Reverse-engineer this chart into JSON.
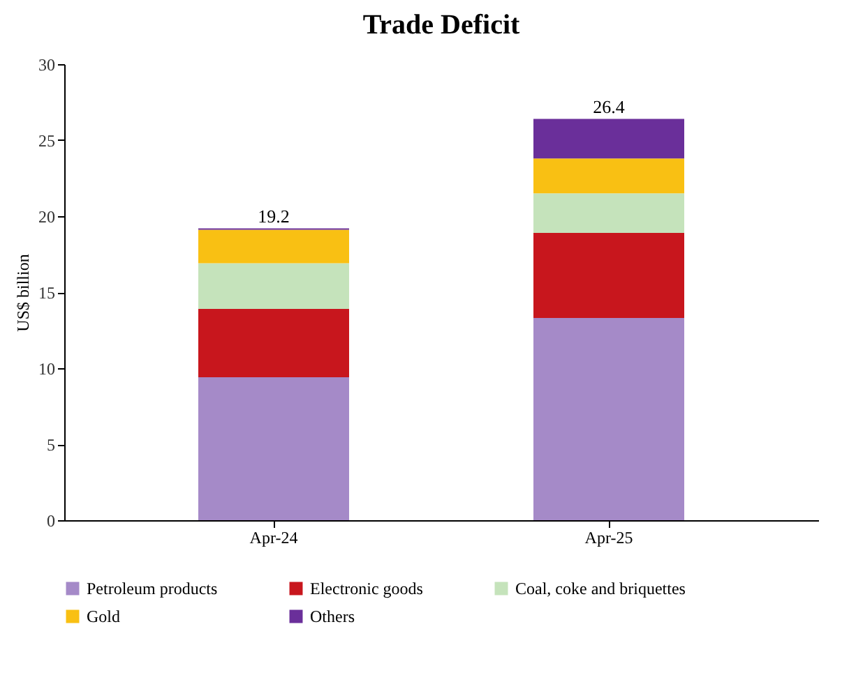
{
  "chart_data": {
    "type": "bar",
    "title": "Trade Deficit",
    "ylabel": "US$ billion",
    "categories": [
      "Apr-24",
      "Apr-25"
    ],
    "stacked": true,
    "series": [
      {
        "name": "Petroleum products",
        "color": "#a58ac8",
        "values": [
          9.4,
          13.3
        ]
      },
      {
        "name": "Electronic goods",
        "color": "#c8161d",
        "values": [
          4.5,
          5.6
        ]
      },
      {
        "name": "Coal, coke and briquettes",
        "color": "#c5e3bb",
        "values": [
          3.0,
          2.6
        ]
      },
      {
        "name": "Gold",
        "color": "#f9c013",
        "values": [
          2.2,
          2.3
        ]
      },
      {
        "name": "Others",
        "color": "#6a2f9a",
        "values": [
          0.1,
          2.6
        ]
      }
    ],
    "totals": [
      "19.2",
      "26.4"
    ],
    "ylim": [
      0,
      30
    ],
    "yticks": [
      0,
      5,
      10,
      15,
      20,
      25,
      30
    ],
    "grid": false,
    "legend": "bottom"
  }
}
